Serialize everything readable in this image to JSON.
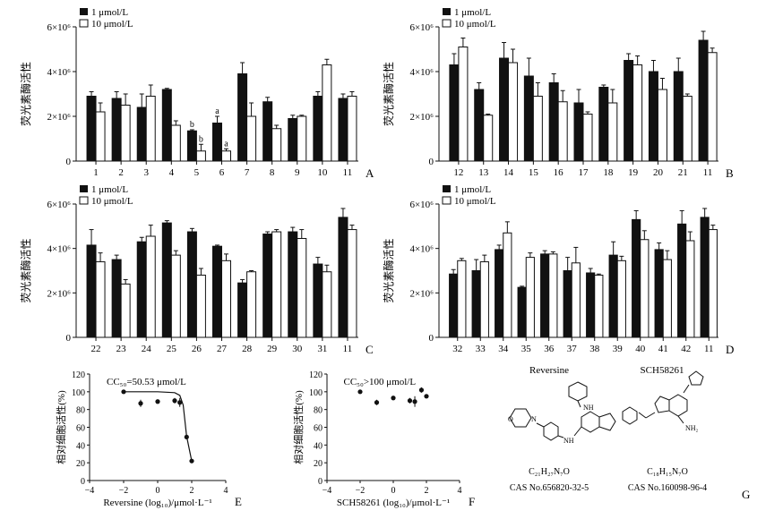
{
  "legend": {
    "low": "1 μmol/L",
    "high": "10 μmol/L"
  },
  "y_ticks": [
    "0",
    "2×10⁶",
    "4×10⁶",
    "6×10⁶"
  ],
  "ylabel": "荧光素酶活性",
  "chart_data": [
    {
      "panel": "A",
      "type": "bar",
      "ylabel": "荧光素酶活性",
      "ylim": [
        0,
        6000000
      ],
      "categories": [
        "1",
        "2",
        "3",
        "4",
        "5",
        "6",
        "7",
        "8",
        "9",
        "10",
        "11"
      ],
      "series": [
        {
          "name": "1 μmol/L",
          "values": [
            2.9,
            2.8,
            2.4,
            3.2,
            1.35,
            1.7,
            3.9,
            2.65,
            1.9,
            2.9,
            2.8
          ],
          "errors": [
            0.2,
            0.3,
            0.6,
            0.05,
            0.05,
            0.3,
            0.5,
            0.2,
            0.15,
            0.2,
            0.2
          ]
        },
        {
          "name": "10 μmol/L",
          "values": [
            2.2,
            2.5,
            2.9,
            1.6,
            0.45,
            0.45,
            2.0,
            1.45,
            2.0,
            4.3,
            2.9
          ],
          "errors": [
            0.4,
            0.5,
            0.5,
            0.2,
            0.3,
            0.1,
            0.6,
            0.15,
            0.05,
            0.25,
            0.2
          ]
        }
      ],
      "annotations": [
        {
          "category": "5",
          "text": "b"
        },
        {
          "category": "6",
          "text": "a"
        },
        {
          "category": "5",
          "series": 1,
          "text": "b"
        },
        {
          "category": "6",
          "series": 1,
          "text": "a"
        }
      ]
    },
    {
      "panel": "B",
      "type": "bar",
      "ylabel": "荧光素酶活性",
      "ylim": [
        0,
        6000000
      ],
      "categories": [
        "12",
        "13",
        "14",
        "15",
        "16",
        "17",
        "18",
        "19",
        "20",
        "21",
        "11"
      ],
      "series": [
        {
          "name": "1 μmol/L",
          "values": [
            4.3,
            3.2,
            4.6,
            3.8,
            3.5,
            2.6,
            3.3,
            4.5,
            4.0,
            4.0,
            5.4
          ],
          "errors": [
            0.5,
            0.3,
            0.7,
            0.8,
            0.4,
            0.6,
            0.1,
            0.3,
            0.5,
            0.6,
            0.4
          ]
        },
        {
          "name": "10 μmol/L",
          "values": [
            5.1,
            2.05,
            4.4,
            2.9,
            2.65,
            2.1,
            2.6,
            4.3,
            3.2,
            2.9,
            4.85
          ],
          "errors": [
            0.4,
            0.05,
            0.6,
            0.6,
            0.5,
            0.1,
            0.6,
            0.4,
            0.5,
            0.1,
            0.2
          ]
        }
      ]
    },
    {
      "panel": "C",
      "type": "bar",
      "ylabel": "荧光素酶活性",
      "ylim": [
        0,
        6000000
      ],
      "categories": [
        "22",
        "23",
        "24",
        "25",
        "26",
        "27",
        "28",
        "29",
        "30",
        "31",
        "11"
      ],
      "series": [
        {
          "name": "1 μmol/L",
          "values": [
            4.15,
            3.5,
            4.3,
            5.15,
            4.75,
            4.1,
            2.45,
            4.65,
            4.75,
            3.3,
            5.4
          ],
          "errors": [
            0.7,
            0.2,
            0.2,
            0.1,
            0.15,
            0.05,
            0.15,
            0.1,
            0.2,
            0.3,
            0.4
          ]
        },
        {
          "name": "10 μmol/L",
          "values": [
            3.4,
            2.4,
            4.55,
            3.7,
            2.8,
            3.45,
            2.95,
            4.75,
            4.45,
            2.95,
            4.85
          ],
          "errors": [
            0.4,
            0.2,
            0.5,
            0.2,
            0.3,
            0.3,
            0.05,
            0.1,
            0.4,
            0.3,
            0.2
          ]
        }
      ]
    },
    {
      "panel": "D",
      "type": "bar",
      "ylabel": "荧光素酶活性",
      "ylim": [
        0,
        6000000
      ],
      "categories": [
        "32",
        "33",
        "34",
        "35",
        "36",
        "37",
        "38",
        "39",
        "40",
        "41",
        "42",
        "11"
      ],
      "series": [
        {
          "name": "1 μmol/L",
          "values": [
            2.85,
            3.0,
            3.95,
            2.25,
            3.75,
            3.0,
            2.9,
            3.7,
            5.3,
            3.95,
            5.1,
            5.4
          ],
          "errors": [
            0.2,
            0.5,
            0.2,
            0.05,
            0.15,
            0.6,
            0.2,
            0.6,
            0.4,
            0.3,
            0.6,
            0.4
          ]
        },
        {
          "name": "10 μmol/L",
          "values": [
            3.45,
            3.4,
            4.7,
            3.6,
            3.75,
            3.35,
            2.8,
            3.45,
            4.4,
            3.5,
            4.35,
            4.85
          ],
          "errors": [
            0.1,
            0.3,
            0.5,
            0.2,
            0.1,
            0.7,
            0.05,
            0.2,
            0.4,
            0.4,
            0.4,
            0.2
          ]
        }
      ]
    },
    {
      "panel": "E",
      "type": "scatter",
      "ylabel": "相对细胞活性(%)",
      "xlabel": "Reversine (log₁₀)/μmol·L⁻¹",
      "xlim": [
        -4,
        4
      ],
      "ylim": [
        0,
        120
      ],
      "x_ticks": [
        "−4",
        "−2",
        "0",
        "2",
        "4"
      ],
      "y_ticks": [
        "0",
        "20",
        "40",
        "60",
        "80",
        "100",
        "120"
      ],
      "annotation": "CC₅₀=50.53 μmol/L",
      "x": [
        -2,
        -1,
        0,
        1,
        1.3,
        1.7,
        2
      ],
      "y": [
        100,
        87,
        89,
        90,
        88,
        49,
        22
      ],
      "errors": [
        0,
        4,
        2,
        3,
        5,
        0,
        0
      ],
      "fit": [
        [
          -2,
          100
        ],
        [
          0,
          100
        ],
        [
          1,
          99
        ],
        [
          1.3,
          96
        ],
        [
          1.5,
          85
        ],
        [
          1.7,
          50
        ],
        [
          2,
          22
        ]
      ]
    },
    {
      "panel": "F",
      "type": "scatter",
      "ylabel": "相对细胞活性(%)",
      "xlabel": "SCH58261 (log₁₀)/μmol·L⁻¹",
      "xlim": [
        -4,
        4
      ],
      "ylim": [
        0,
        120
      ],
      "x_ticks": [
        "−4",
        "−2",
        "0",
        "2",
        "4"
      ],
      "y_ticks": [
        "0",
        "20",
        "40",
        "60",
        "80",
        "100",
        "120"
      ],
      "annotation": "CC₅₀>100 μmol/L",
      "x": [
        -2,
        -1,
        0,
        1,
        1.3,
        1.7,
        2
      ],
      "y": [
        100,
        88,
        93,
        90,
        89,
        102,
        95
      ],
      "errors": [
        0,
        3,
        1,
        3,
        6,
        3,
        2
      ]
    }
  ],
  "panel_g": {
    "letter": "G",
    "rev": {
      "name": "Reversine",
      "formula": "C₂₁H₂₇N₇O",
      "cas": "CAS No.656820-32-5"
    },
    "sch": {
      "name": "SCH58261",
      "formula": "C₁₈H₁₅N₇O",
      "cas": "CAS No.160098-96-4"
    },
    "nh": "NH",
    "n": "N",
    "o": "O",
    "nh2": "NH₂"
  }
}
